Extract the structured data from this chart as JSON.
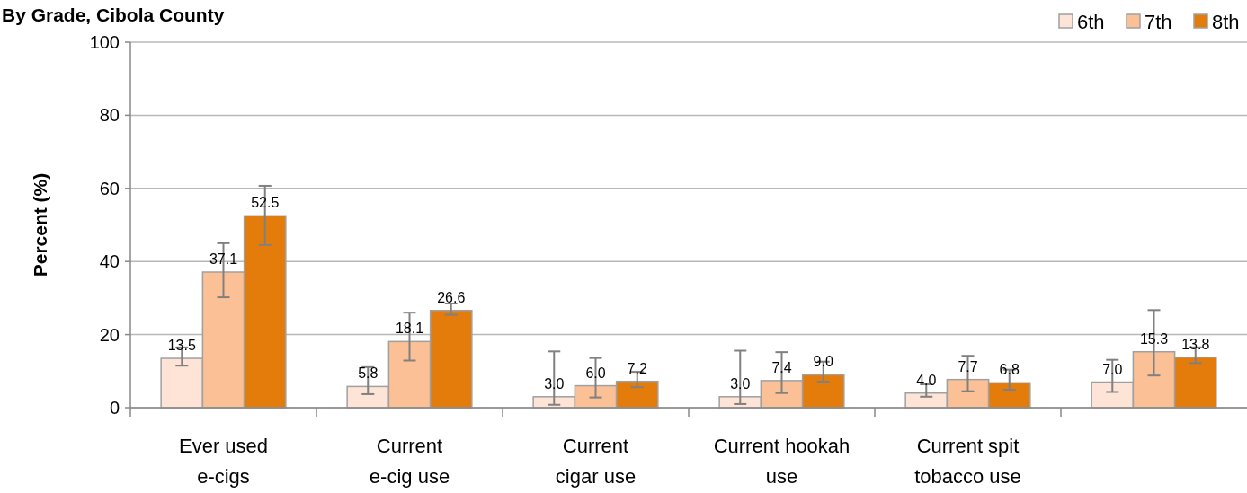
{
  "chart_data": {
    "type": "bar",
    "title": "By Grade, Cibola County",
    "ylabel": "Percent (%)",
    "categories": [
      "Ever used\ne-cigs",
      "Current\ne-cig use",
      "Current\ncigar use",
      "Current hookah\nuse",
      "Current spit\ntobacco use",
      null
    ],
    "series": [
      {
        "name": "6th",
        "color": "#fde4d6",
        "values": [
          13.5,
          5.8,
          3.0,
          3.0,
          4.0,
          7.0
        ],
        "value_labels": [
          "13.5",
          "5.8",
          "3.0",
          "3.0",
          "4.0",
          "7.0"
        ],
        "errors": [
          [
            11.5,
            16.5
          ],
          [
            3.7,
            11.1
          ],
          [
            0.8,
            15.4
          ],
          [
            1.0,
            15.6
          ],
          [
            3.0,
            6.4
          ],
          [
            4.3,
            13.1
          ]
        ]
      },
      {
        "name": "7th",
        "color": "#fbc096",
        "values": [
          37.1,
          18.1,
          6.0,
          7.4,
          7.7,
          15.3
        ],
        "value_labels": [
          "37.1",
          "18.1",
          "6.0",
          "7.4",
          "7.7",
          "15.3"
        ],
        "errors": [
          [
            30.2,
            45.0
          ],
          [
            12.9,
            26.0
          ],
          [
            2.8,
            13.6
          ],
          [
            4.0,
            15.2
          ],
          [
            4.5,
            14.2
          ],
          [
            8.8,
            26.7
          ]
        ]
      },
      {
        "name": "8th",
        "color": "#e47c0c",
        "values": [
          52.5,
          26.6,
          7.2,
          9.0,
          6.8,
          13.8
        ],
        "value_labels": [
          "52.5",
          "26.6",
          "7.2",
          "9.0",
          "6.8",
          "13.8"
        ],
        "errors": [
          [
            44.5,
            60.7
          ],
          [
            25.4,
            28.5
          ],
          [
            5.6,
            9.8
          ],
          [
            7.1,
            12.6
          ],
          [
            4.9,
            10.4
          ],
          [
            12.2,
            16.5
          ]
        ]
      }
    ],
    "ylim": [
      0,
      100
    ],
    "yticks": [
      0,
      20,
      40,
      60,
      80,
      100
    ],
    "grid": "y",
    "legend": "top right"
  }
}
